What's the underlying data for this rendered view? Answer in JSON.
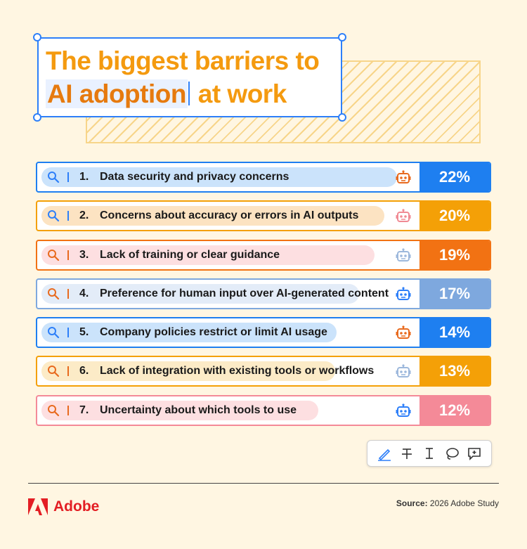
{
  "title": {
    "line1": "The biggest barriers to",
    "highlight": "AI adoption",
    "line2_rest": " at work"
  },
  "chart_data": {
    "type": "bar",
    "title": "The biggest barriers to AI adoption at work",
    "unit": "%",
    "categories": [
      "Data security and privacy concerns",
      "Concerns about accuracy or errors in AI outputs",
      "Lack of training or clear guidance",
      "Preference for human input over AI-generated content",
      "Company policies restrict or limit AI usage",
      "Lack of integration with existing tools or workflows",
      "Uncertainty about which tools to use"
    ],
    "values": [
      22,
      20,
      19,
      17,
      14,
      13,
      12
    ]
  },
  "rows": [
    {
      "num": "1.",
      "label": "Data security and privacy concerns",
      "pct": "22%",
      "color": "#1E7FF0",
      "pill": "#CBE3FB",
      "icon": "#2D7FF9",
      "robot": "#E86A1E"
    },
    {
      "num": "2.",
      "label": "Concerns about accuracy or errors in AI outputs",
      "pct": "20%",
      "color": "#F4A007",
      "pill": "#FCE3C2",
      "icon": "#2D7FF9",
      "robot": "#F08A94"
    },
    {
      "num": "3.",
      "label": "Lack of training or clear guidance",
      "pct": "19%",
      "color": "#F27213",
      "pill": "#FDDFE1",
      "icon": "#E86A1E",
      "robot": "#9DB8DC"
    },
    {
      "num": "4.",
      "label": "Preference for human input over AI-generated content",
      "pct": "17%",
      "color": "#7EA8DE",
      "pill": "#E3ECF8",
      "icon": "#E86A1E",
      "robot": "#2D7FF9"
    },
    {
      "num": "5.",
      "label": "Company policies restrict or limit AI usage",
      "pct": "14%",
      "color": "#1E7FF0",
      "pill": "#CBE3FB",
      "icon": "#2D7FF9",
      "robot": "#E86A1E"
    },
    {
      "num": "6.",
      "label": "Lack of integration with existing tools or workflows",
      "pct": "13%",
      "color": "#F4A007",
      "pill": "#FCEBC7",
      "icon": "#E86A1E",
      "robot": "#9DB8DC"
    },
    {
      "num": "7.",
      "label": "Uncertainty about which tools to use",
      "pct": "12%",
      "color": "#F48A98",
      "pill": "#FDDFE1",
      "icon": "#E86A1E",
      "robot": "#2D7FF9"
    }
  ],
  "toolbar": {
    "tools": [
      "draw-pen-icon",
      "strikethrough-icon",
      "text-cursor-icon",
      "lasso-icon",
      "add-comment-icon"
    ]
  },
  "footer": {
    "brand": "Adobe",
    "source_label": "Source:",
    "source_text": " 2026 Adobe Study"
  }
}
